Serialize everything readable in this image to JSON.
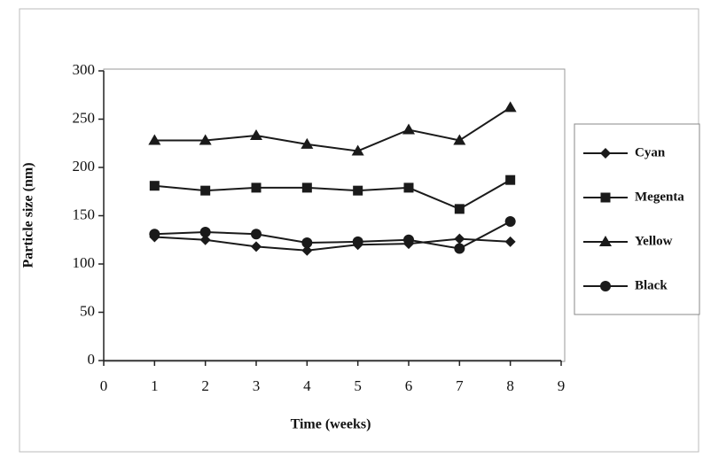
{
  "chart_data": {
    "type": "line",
    "x_label": "Time (weeks)",
    "y_label": "Particle size (nm)",
    "x": [
      1,
      2,
      3,
      4,
      5,
      6,
      7,
      8
    ],
    "series": [
      {
        "name": "Cyan",
        "color": "#1a1a1a",
        "marker": "diamond",
        "values": [
          128,
          125,
          118,
          114,
          120,
          121,
          126,
          123
        ]
      },
      {
        "name": "Megenta",
        "color": "#1a1a1a",
        "marker": "square",
        "values": [
          181,
          176,
          179,
          179,
          176,
          179,
          157,
          187
        ]
      },
      {
        "name": "Yellow",
        "color": "#1a1a1a",
        "marker": "triangle",
        "values": [
          228,
          228,
          233,
          224,
          217,
          239,
          228,
          262
        ]
      },
      {
        "name": "Black",
        "color": "#1a1a1a",
        "marker": "circle",
        "values": [
          131,
          133,
          131,
          122,
          123,
          125,
          116,
          144
        ]
      }
    ],
    "xlim": [
      0,
      9
    ],
    "xticks": [
      0,
      1,
      2,
      3,
      4,
      5,
      6,
      7,
      8,
      9
    ],
    "ylim": [
      0,
      300
    ],
    "yticks": [
      0,
      50,
      100,
      150,
      200,
      250,
      300
    ],
    "grid": false,
    "legend": "right"
  }
}
